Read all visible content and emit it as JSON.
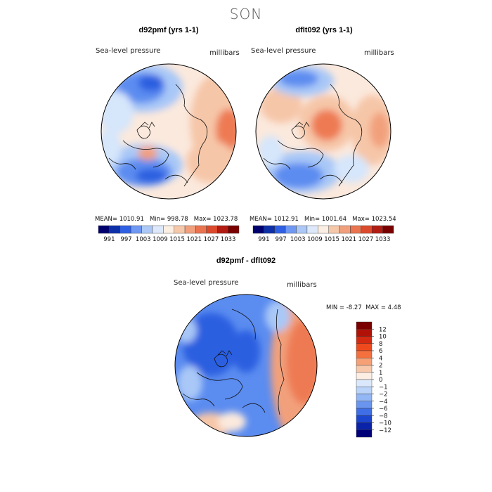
{
  "figure": {
    "season": "SON",
    "variable": "Sea-level pressure",
    "units": "millibars"
  },
  "colors": {
    "deep_blue": "#0a1a8c",
    "blue": "#2c5fe0",
    "mid_blue": "#5b8cf0",
    "light_blue": "#a9c8f7",
    "pale_blue": "#d6e6fb",
    "cream": "#fbe9dd",
    "light_salmon": "#f6c6a8",
    "salmon": "#f2a07c",
    "orange": "#ee7a52",
    "red": "#e0452a",
    "dark_red": "#8c0a0a"
  },
  "chart_data": [
    {
      "type": "heatmap",
      "title": "d92pmf (yrs 1-1)",
      "label_left": "Sea-level pressure",
      "label_right": "millibars",
      "mean_label": "MEAN=",
      "mean": "1010.91",
      "min_label": "Min=",
      "min": "998.78",
      "max_label": "Max=",
      "max": "1023.78",
      "colorbar_levels": [
        "991",
        "997",
        "1003",
        "1009",
        "1015",
        "1021",
        "1027",
        "1033"
      ],
      "colorbar_colors": [
        "#00006e",
        "#0d2fa8",
        "#2f5fe3",
        "#6f98f2",
        "#abc8f6",
        "#dde9fb",
        "#fbefe4",
        "#f6c8aa",
        "#f1a07e",
        "#e9744f",
        "#db4a2c",
        "#b21c12",
        "#7a0000"
      ]
    },
    {
      "type": "heatmap",
      "title": "dflt092 (yrs 1-1)",
      "label_left": "Sea-level pressure",
      "label_right": "millibars",
      "mean_label": "MEAN=",
      "mean": "1012.91",
      "min_label": "Min=",
      "min": "1001.64",
      "max_label": "Max=",
      "max": "1023.54",
      "colorbar_levels": [
        "991",
        "997",
        "1003",
        "1009",
        "1015",
        "1021",
        "1027",
        "1033"
      ],
      "colorbar_colors": [
        "#00006e",
        "#0d2fa8",
        "#2f5fe3",
        "#6f98f2",
        "#abc8f6",
        "#dde9fb",
        "#fbefe4",
        "#f6c8aa",
        "#f1a07e",
        "#e9744f",
        "#db4a2c",
        "#b21c12",
        "#7a0000"
      ]
    },
    {
      "type": "heatmap",
      "title": "d92pmf - dflt092",
      "label_left": "Sea-level pressure",
      "label_right": "millibars",
      "min_label": "MIN =",
      "min": "-8.27",
      "max_label": "MAX =",
      "max": "4.48",
      "colorbar_levels": [
        "12",
        "10",
        "8",
        "6",
        "4",
        "2",
        "1",
        "0",
        "−1",
        "−2",
        "−4",
        "−6",
        "−8",
        "−10",
        "−12"
      ],
      "colorbar_colors": [
        "#7a0000",
        "#b01208",
        "#d42a12",
        "#ef4a1e",
        "#f4703e",
        "#f6a076",
        "#f8c8ab",
        "#fdeee4",
        "#dbe8fb",
        "#bad3f8",
        "#93b6f4",
        "#6a95ef",
        "#3f6ee6",
        "#1d46cf",
        "#0a23a8",
        "#000078"
      ]
    }
  ]
}
